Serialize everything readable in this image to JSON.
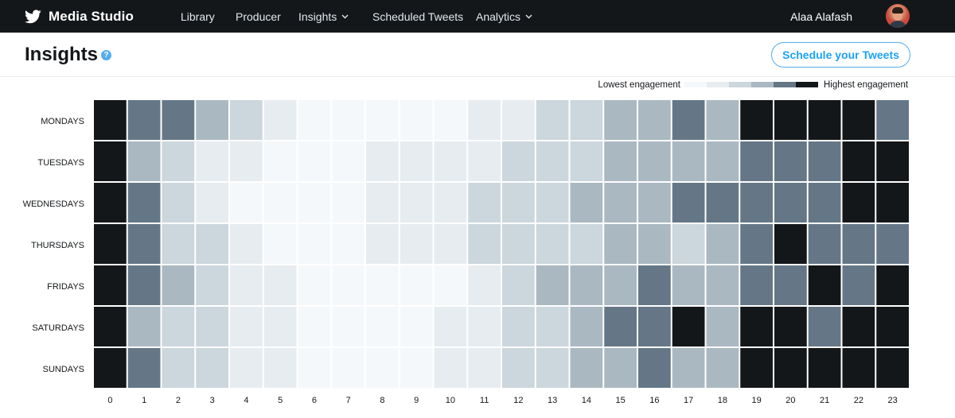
{
  "header": {
    "brand": "Media Studio",
    "nav": [
      {
        "label": "Library",
        "dropdown": false
      },
      {
        "label": "Producer",
        "dropdown": false
      },
      {
        "label": "Insights",
        "dropdown": true
      },
      {
        "label": "Scheduled Tweets",
        "dropdown": false
      },
      {
        "label": "Analytics",
        "dropdown": true
      }
    ],
    "user_name": "Alaa Alafash"
  },
  "page": {
    "title": "Insights",
    "help_icon": "?",
    "schedule_button": "Schedule your Tweets"
  },
  "legend": {
    "low_label": "Lowest engagement",
    "high_label": "Highest engagement",
    "colors": [
      "#f5f8fa",
      "#e6ecf0",
      "#ccd6dd",
      "#aab8c2",
      "#657786",
      "#14171a"
    ]
  },
  "heatmap": {
    "rows": [
      "MONDAYS",
      "TUESDAYS",
      "WEDNESDAYS",
      "THURSDAYS",
      "FRIDAYS",
      "SATURDAYS",
      "SUNDAYS"
    ],
    "columns": [
      "0",
      "1",
      "2",
      "3",
      "4",
      "5",
      "6",
      "7",
      "8",
      "9",
      "10",
      "11",
      "12",
      "13",
      "14",
      "15",
      "16",
      "17",
      "18",
      "19",
      "20",
      "21",
      "22",
      "23"
    ],
    "levels": [
      [
        5,
        4,
        4,
        3,
        2,
        1,
        0,
        0,
        0,
        0,
        0,
        1,
        1,
        2,
        2,
        3,
        3,
        4,
        3,
        5,
        5,
        5,
        5,
        4
      ],
      [
        5,
        3,
        2,
        1,
        1,
        0,
        0,
        0,
        1,
        1,
        1,
        1,
        2,
        2,
        2,
        3,
        3,
        3,
        3,
        4,
        4,
        4,
        5,
        5
      ],
      [
        5,
        4,
        2,
        1,
        0,
        0,
        0,
        0,
        1,
        1,
        1,
        2,
        2,
        2,
        3,
        3,
        3,
        4,
        4,
        4,
        4,
        4,
        5,
        5
      ],
      [
        5,
        4,
        2,
        2,
        1,
        0,
        0,
        0,
        1,
        1,
        1,
        2,
        2,
        2,
        2,
        3,
        3,
        2,
        3,
        4,
        5,
        4,
        4,
        4
      ],
      [
        5,
        4,
        3,
        2,
        1,
        1,
        0,
        0,
        0,
        0,
        0,
        1,
        2,
        3,
        3,
        3,
        4,
        3,
        3,
        4,
        4,
        5,
        4,
        5
      ],
      [
        5,
        3,
        2,
        2,
        1,
        1,
        0,
        0,
        0,
        0,
        1,
        1,
        2,
        2,
        3,
        4,
        4,
        5,
        3,
        5,
        5,
        4,
        5,
        5
      ],
      [
        5,
        4,
        2,
        2,
        1,
        1,
        0,
        0,
        0,
        0,
        1,
        1,
        2,
        2,
        3,
        3,
        4,
        3,
        3,
        5,
        5,
        5,
        5,
        5
      ]
    ]
  }
}
